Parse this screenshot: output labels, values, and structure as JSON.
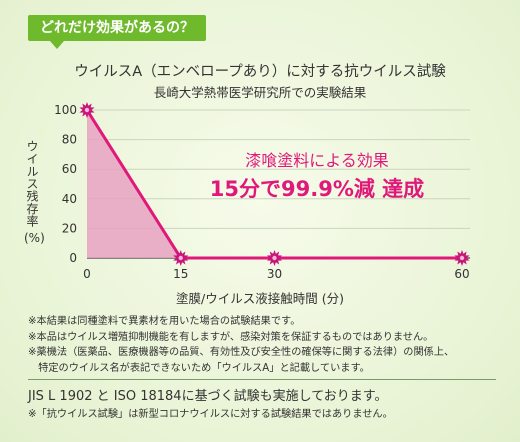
{
  "header": {
    "badge": "どれだけ効果があるの？"
  },
  "chart_data": {
    "type": "line",
    "title": "ウイルスA（エンベロープあり）に対する抗ウイルス試験",
    "subtitle": "長崎大学熱帯医学研究所での実験結果",
    "ylabel": "ウイルス残存率",
    "ylabel_unit": "(%)",
    "xlabel": "塗膜/ウイルス液接触時間 (分)",
    "x": [
      0,
      15,
      30,
      60
    ],
    "y": [
      100,
      0,
      0,
      0
    ],
    "x_ticks": [
      "0",
      "15",
      "30",
      "60"
    ],
    "y_ticks": [
      "100",
      "80",
      "60",
      "40",
      "20",
      "0"
    ],
    "xlim": [
      0,
      60
    ],
    "ylim": [
      0,
      100
    ],
    "fill_under_first_segment": true,
    "line_color": "#e0187a",
    "fill_color": "#e7a2c2",
    "marker_color": "#c8157a",
    "annotation": {
      "line1": "漆喰塗料による効果",
      "line2": "15分で99.9%減 達成"
    }
  },
  "notes": [
    "※本結果は同種塗料で異素材を用いた場合の試験結果です。",
    "※本品はウイルス増殖抑制機能を有しますが、感染対策を保証するものではありません。",
    "※薬機法（医薬品、医療機器等の品質、有効性及び安全性の確保等に関する法律）の関係上、",
    "　特定のウイルス名が表記できないため「ウイルスA」と記載しています。"
  ],
  "footer": {
    "jis": "JIS L 1902 と ISO 18184に基づく試験も実施しております。",
    "note": "※「抗ウイルス試験」は新型コロナウイルスに対する試験結果ではありません。"
  },
  "colors": {
    "badge_bg": "#6fb92d",
    "accent": "#e0187a",
    "background": "#eef7e0"
  }
}
